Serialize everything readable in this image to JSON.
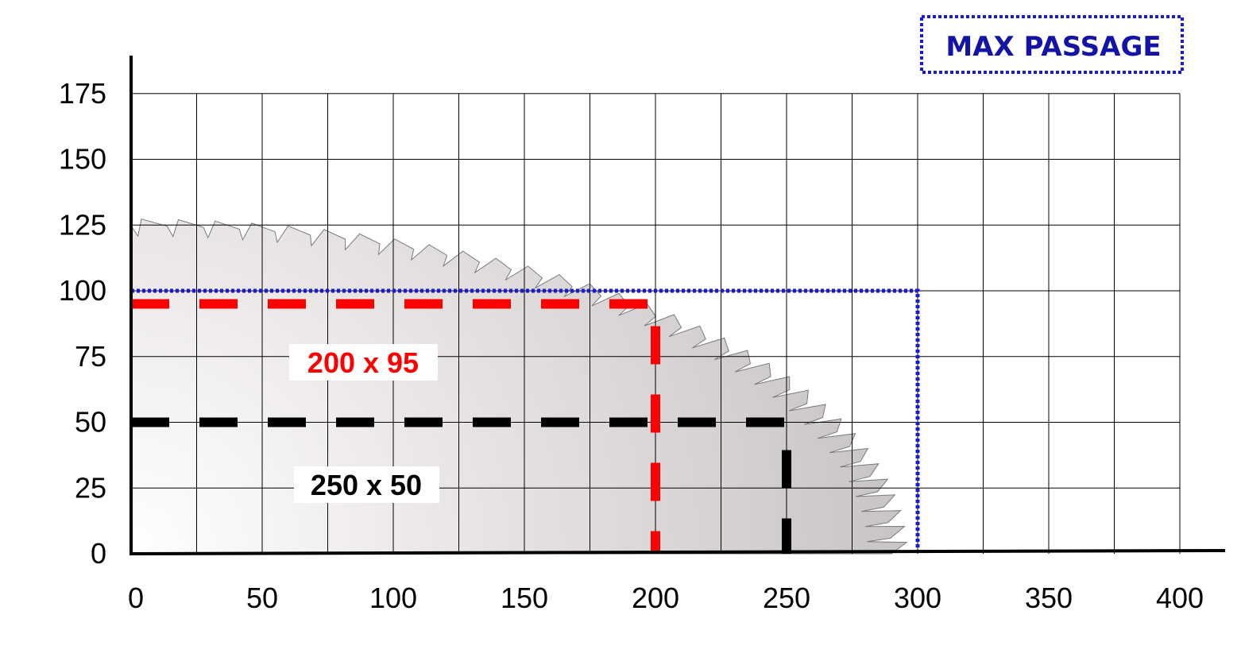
{
  "chart_data": {
    "type": "line",
    "title": "",
    "xlabel": "",
    "ylabel": "",
    "xlim": [
      0,
      400
    ],
    "ylim": [
      0,
      175
    ],
    "x_ticks": [
      0,
      50,
      100,
      150,
      200,
      250,
      300,
      350,
      400
    ],
    "y_ticks": [
      0,
      25,
      50,
      75,
      100,
      125,
      150,
      175
    ],
    "x_tick_labels": [
      "0",
      "50",
      "100",
      "150",
      "200",
      "250",
      "300",
      "350",
      "400"
    ],
    "y_tick_labels": [
      "0",
      "25",
      "50",
      "75",
      "100",
      "125",
      "150",
      "175"
    ],
    "x_grid_step": 25,
    "y_grid_step": 25,
    "grid": true,
    "cut_boxes": [
      {
        "label": "200 x 95",
        "width": 200,
        "height": 95,
        "color": "#ff0000",
        "label_color": "#ff0000",
        "style": "dashed"
      },
      {
        "label": "250 x 50",
        "width": 250,
        "height": 50,
        "color": "#000000",
        "label_color": "#000000",
        "style": "dashed"
      }
    ],
    "max_passage": {
      "label": "MAX PASSAGE",
      "width": 300,
      "height": 100,
      "color": "#1a1ad6",
      "style": "dotted",
      "legend_position": "top-right"
    },
    "blade": {
      "radius": 290,
      "teeth": 66,
      "fill": "#d9d5d5"
    }
  }
}
